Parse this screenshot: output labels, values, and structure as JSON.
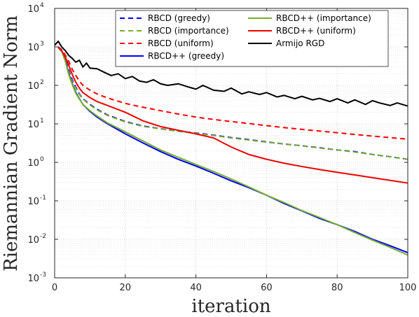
{
  "chart_data": {
    "type": "line",
    "xlabel": "iteration",
    "ylabel": "Riemannian Gradient Norm",
    "xlim": [
      0,
      100
    ],
    "ylim_log10": [
      -3,
      4
    ],
    "yscale": "log",
    "grid": "on (major + minor, dotted)",
    "legend_placement": "top-right, two columns",
    "x_ticks": [
      "0",
      "20",
      "40",
      "60",
      "80",
      "100"
    ],
    "y_tick_exponents": [
      "-3",
      "-2",
      "-1",
      "0",
      "1",
      "2",
      "3",
      "4"
    ],
    "y_tick_base": "10",
    "series": [
      {
        "name": "RBCD (greedy)",
        "color": "#0000ff",
        "dash": "dashed",
        "x": [
          1,
          2,
          3,
          4,
          5,
          6,
          7,
          8,
          10,
          12,
          15,
          20,
          25,
          30,
          35,
          40,
          45,
          50,
          55,
          60,
          65,
          70,
          75,
          80,
          85,
          90,
          95,
          100
        ],
        "y": [
          1000,
          800,
          500,
          250,
          140,
          90,
          60,
          45,
          32,
          24,
          17,
          11.5,
          8.8,
          7.5,
          6.5,
          5.8,
          5.1,
          4.4,
          3.9,
          3.4,
          3.0,
          2.7,
          2.4,
          2.1,
          1.9,
          1.6,
          1.4,
          1.2
        ]
      },
      {
        "name": "RBCD (importance)",
        "color": "#77ac30",
        "dash": "dashed",
        "x": [
          1,
          2,
          3,
          4,
          5,
          6,
          7,
          8,
          10,
          12,
          15,
          20,
          25,
          30,
          35,
          40,
          45,
          50,
          55,
          60,
          65,
          70,
          75,
          80,
          85,
          90,
          95,
          100
        ],
        "y": [
          950,
          750,
          450,
          230,
          130,
          85,
          58,
          44,
          31,
          23,
          16.5,
          11.2,
          8.6,
          7.4,
          6.4,
          5.7,
          5.0,
          4.3,
          3.8,
          3.35,
          3.0,
          2.7,
          2.35,
          2.1,
          1.85,
          1.6,
          1.4,
          1.2
        ]
      },
      {
        "name": "RBCD (uniform)",
        "color": "#ff0000",
        "dash": "dashed",
        "x": [
          1,
          2,
          3,
          4,
          5,
          6,
          7,
          8,
          10,
          12,
          15,
          20,
          25,
          30,
          35,
          40,
          45,
          50,
          55,
          60,
          65,
          70,
          75,
          80,
          85,
          90,
          95,
          100
        ],
        "y": [
          1000,
          850,
          620,
          420,
          260,
          180,
          130,
          100,
          75,
          60,
          47,
          34,
          27,
          22,
          18,
          15,
          13,
          11.5,
          10.2,
          9.0,
          8.0,
          7.2,
          6.5,
          5.9,
          5.3,
          4.8,
          4.4,
          4.0
        ]
      },
      {
        "name": "RBCD++ (greedy)",
        "color": "#0000ff",
        "dash": "solid",
        "x": [
          1,
          2,
          3,
          4,
          5,
          6,
          7,
          8,
          10,
          12,
          15,
          20,
          25,
          30,
          35,
          40,
          45,
          50,
          55,
          60,
          65,
          70,
          75,
          80,
          85,
          90,
          95,
          100
        ],
        "y": [
          1000,
          800,
          450,
          200,
          110,
          65,
          45,
          32,
          21,
          15,
          10,
          5.5,
          3.2,
          1.9,
          1.2,
          0.8,
          0.52,
          0.33,
          0.22,
          0.14,
          0.085,
          0.055,
          0.035,
          0.024,
          0.016,
          0.01,
          0.0068,
          0.0045
        ]
      },
      {
        "name": "RBCD++ (importance)",
        "color": "#77ac30",
        "dash": "solid",
        "x": [
          1,
          2,
          3,
          4,
          5,
          6,
          7,
          8,
          10,
          12,
          15,
          20,
          25,
          30,
          35,
          40,
          45,
          50,
          55,
          60,
          65,
          70,
          75,
          80,
          85,
          90,
          95,
          100
        ],
        "y": [
          950,
          780,
          430,
          190,
          105,
          62,
          44,
          32,
          22,
          16,
          10.5,
          6.2,
          3.6,
          2.1,
          1.35,
          0.88,
          0.58,
          0.37,
          0.23,
          0.14,
          0.09,
          0.056,
          0.037,
          0.024,
          0.015,
          0.0095,
          0.0062,
          0.0039
        ]
      },
      {
        "name": "RBCD++ (uniform)",
        "color": "#ee0000",
        "dash": "solid",
        "x": [
          1,
          2,
          3,
          4,
          5,
          6,
          7,
          8,
          10,
          12,
          15,
          20,
          25,
          30,
          35,
          40,
          45,
          50,
          55,
          60,
          65,
          70,
          75,
          80,
          85,
          90,
          95,
          100
        ],
        "y": [
          1000,
          780,
          550,
          330,
          190,
          120,
          85,
          65,
          48,
          38,
          30,
          20,
          12,
          8.5,
          6.8,
          5.5,
          4.3,
          2.5,
          1.6,
          1.2,
          0.95,
          0.78,
          0.65,
          0.55,
          0.47,
          0.4,
          0.34,
          0.29
        ]
      },
      {
        "name": "Armijo RGD",
        "color": "#000000",
        "dash": "solid",
        "x": [
          0,
          1,
          2,
          3,
          4,
          5,
          6,
          7,
          8,
          9,
          10,
          12,
          14,
          16,
          18,
          20,
          22,
          24,
          26,
          28,
          30,
          32,
          35,
          38,
          40,
          42,
          45,
          48,
          50,
          53,
          55,
          58,
          60,
          63,
          65,
          68,
          70,
          73,
          75,
          78,
          80,
          83,
          85,
          88,
          90,
          92,
          95,
          97,
          100
        ],
        "y": [
          1100,
          1400,
          1000,
          800,
          600,
          500,
          400,
          450,
          300,
          380,
          280,
          270,
          220,
          180,
          200,
          150,
          170,
          130,
          120,
          140,
          110,
          100,
          110,
          90,
          80,
          100,
          75,
          70,
          85,
          60,
          68,
          58,
          65,
          50,
          55,
          45,
          52,
          42,
          46,
          38,
          45,
          35,
          42,
          32,
          40,
          35,
          30,
          35,
          29
        ]
      }
    ]
  }
}
